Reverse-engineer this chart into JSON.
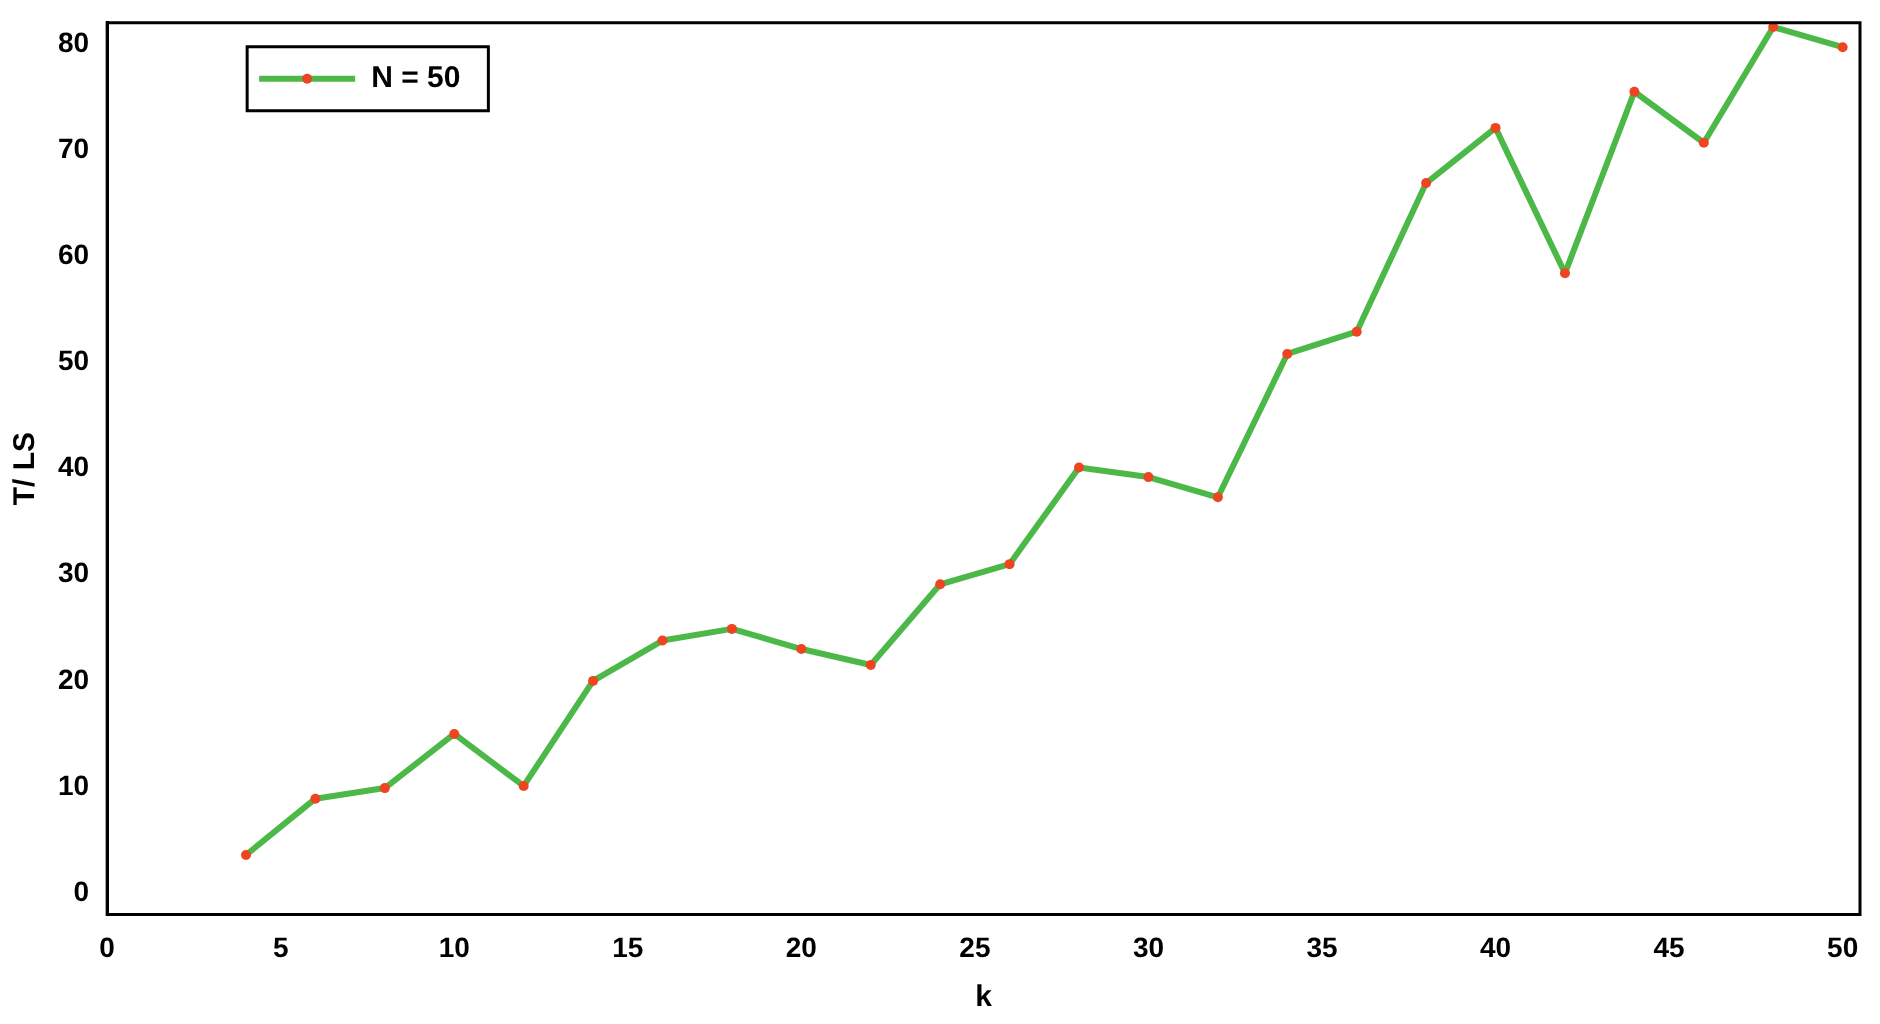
{
  "chart_data": {
    "type": "line",
    "xlabel": "k",
    "ylabel": "T/ LS",
    "x": [
      4,
      6,
      8,
      10,
      12,
      14,
      16,
      18,
      20,
      22,
      24,
      26,
      28,
      30,
      32,
      34,
      36,
      38,
      40,
      42,
      44,
      46,
      48,
      50
    ],
    "series": [
      {
        "name": "N = 50",
        "color": "#4cb848",
        "values": [
          3.6,
          8.9,
          9.9,
          15.0,
          10.1,
          20.0,
          23.8,
          24.9,
          23.0,
          21.5,
          29.1,
          31.0,
          40.1,
          39.2,
          37.3,
          50.8,
          52.9,
          66.9,
          72.1,
          58.4,
          75.5,
          70.7,
          81.6,
          79.7
        ]
      }
    ],
    "xlim": [
      0,
      50.5
    ],
    "xticks": [
      0,
      5,
      10,
      15,
      20,
      25,
      30,
      35,
      40,
      45,
      50
    ],
    "ylim": [
      -2,
      82
    ],
    "yticks": [
      0,
      10,
      20,
      30,
      40,
      50,
      60,
      70,
      80
    ],
    "grid": false,
    "legend": "top left",
    "marker": "circle",
    "line_style": "solid"
  }
}
